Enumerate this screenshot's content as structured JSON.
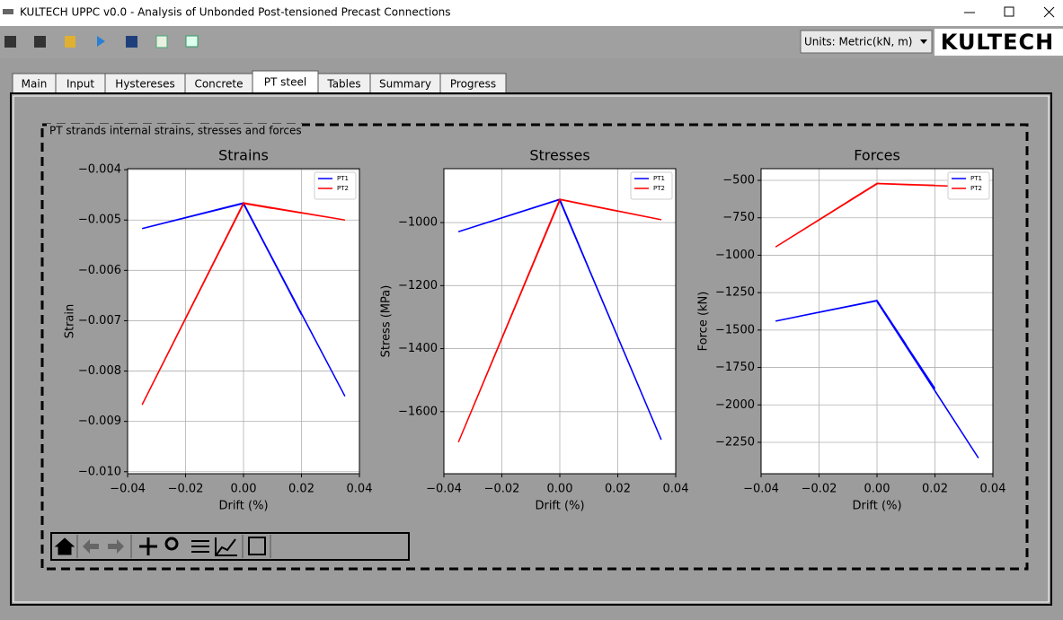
{
  "window": {
    "title": "KULTECH UPPC v0.0 - Analysis of Unbonded Post-tensioned Precast Connections"
  },
  "units": "Units: Metric(kN, m)",
  "logo": "KULTECH",
  "tabs": [
    "Main",
    "Input",
    "Hystereses",
    "Concrete",
    "PT steel",
    "Tables",
    "Summary",
    "Progress"
  ],
  "group_label": "PT strands internal strains, stresses and forces",
  "chart_data": [
    {
      "type": "line",
      "title": "Strains",
      "x_label": "Drift (%)",
      "y_label": "Strain",
      "x": [
        0,
        -0.01,
        0,
        -0.02,
        0,
        -0.035,
        0,
        0.01,
        0,
        0.02,
        0,
        0.035,
        0
      ],
      "series": [
        {
          "name": "PT1",
          "color": "#0000ff",
          "values": [
            -0.00466,
            -0.00481,
            -0.00467,
            -0.00495,
            -0.00467,
            -0.00517,
            -0.00466,
            -0.00577,
            -0.00467,
            -0.00688,
            -0.00468,
            -0.0085,
            -0.00467
          ]
        },
        {
          "name": "PT2",
          "color": "#ff0000",
          "values": [
            -0.00466,
            -0.00581,
            -0.00467,
            -0.00695,
            -0.00468,
            -0.00867,
            -0.00466,
            -0.00477,
            -0.00467,
            -0.00486,
            -0.00467,
            -0.005,
            -0.00466
          ]
        }
      ],
      "xlim": [
        -0.04,
        0.04
      ],
      "xticks": [
        {
          "value": -0.04,
          "label": "−0.04"
        },
        {
          "value": -0.02,
          "label": "−0.02"
        },
        {
          "value": 0,
          "label": "0.00"
        },
        0.02,
        0.04
      ],
      "ylim": [
        -0.01004,
        -0.00398
      ],
      "yticks": [
        {
          "value": -0.004,
          "label": "−0.004"
        },
        {
          "value": -0.005,
          "label": "−0.005"
        },
        {
          "value": -0.006,
          "label": "−0.006"
        },
        {
          "value": -0.007,
          "label": "−0.007"
        },
        {
          "value": -0.008,
          "label": "−0.008"
        },
        {
          "value": -0.009,
          "label": "−0.009"
        },
        {
          "value": -0.01,
          "label": "−0.010"
        }
      ],
      "grid": true,
      "legend": "upper right"
    },
    {
      "type": "line",
      "title": "Stresses",
      "x_label": "Drift (%)",
      "y_label": "Stress (MPa)",
      "x": [
        0,
        -0.01,
        0,
        -0.02,
        0,
        -0.035,
        0,
        0.01,
        0,
        0.02,
        0,
        0.035,
        0
      ],
      "series": [
        {
          "name": "PT1",
          "color": "#0000ff",
          "values": [
            -926,
            -956,
            -927,
            -985,
            -927,
            -1029,
            -926,
            -1145,
            -928,
            -1363,
            -930,
            -1689,
            -928
          ]
        },
        {
          "name": "PT2",
          "color": "#ff0000",
          "values": [
            -926,
            -1147,
            -928,
            -1368,
            -930,
            -1697,
            -926,
            -945,
            -927,
            -964,
            -927,
            -991,
            -926
          ]
        }
      ],
      "xlim": [
        -0.04,
        0.04
      ],
      "xticks": [
        {
          "value": -0.04,
          "label": "−0.04"
        },
        {
          "value": -0.02,
          "label": "−0.02"
        },
        {
          "value": 0,
          "label": "0.00"
        },
        0.02,
        0.04
      ],
      "ylim": [
        -1797,
        -829
      ],
      "yticks": [
        {
          "value": -1000,
          "label": "−1000"
        },
        {
          "value": -1200,
          "label": "−1200"
        },
        {
          "value": -1400,
          "label": "−1400"
        },
        {
          "value": -1600,
          "label": "−1600"
        }
      ],
      "grid": true,
      "legend": "upper right"
    },
    {
      "type": "line",
      "title": "Forces",
      "x_label": "Drift (%)",
      "y_label": "Force (kN)",
      "x": [
        0,
        -0.01,
        0,
        -0.02,
        0,
        -0.035,
        0,
        0.01,
        0,
        0.02,
        0,
        0.035,
        0
      ],
      "series": [
        {
          "name": "PT1",
          "color": "#0000ff",
          "values": [
            -1302,
            -1342,
            -1304,
            -1381,
            -1305,
            -1440,
            -1302,
            -1596,
            -1306,
            -1891,
            -1310,
            -2355,
            -1306
          ]
        },
        {
          "name": "PT2",
          "color": "#ff0000",
          "values": [
            -520,
            -641,
            -522,
            -763,
            -524,
            -945,
            -520,
            -527,
            -521,
            -533,
            -522,
            -545,
            -520
          ]
        }
      ],
      "xlim": [
        -0.04,
        0.04
      ],
      "xticks": [
        {
          "value": -0.04,
          "label": "−0.04"
        },
        {
          "value": -0.02,
          "label": "−0.02"
        },
        {
          "value": 0,
          "label": "0.00"
        },
        0.02,
        0.04
      ],
      "ylim": [
        -2460,
        -422
      ],
      "yticks": [
        {
          "value": -500,
          "label": "−500"
        },
        {
          "value": -750,
          "label": "−750"
        },
        {
          "value": -1000,
          "label": "−1000"
        },
        {
          "value": -1250,
          "label": "−1250"
        },
        {
          "value": -1500,
          "label": "−1500"
        },
        {
          "value": -1750,
          "label": "−1750"
        },
        {
          "value": -2000,
          "label": "−2000"
        },
        {
          "value": -2250,
          "label": "−2250"
        }
      ],
      "grid": true,
      "legend": "upper right"
    }
  ]
}
